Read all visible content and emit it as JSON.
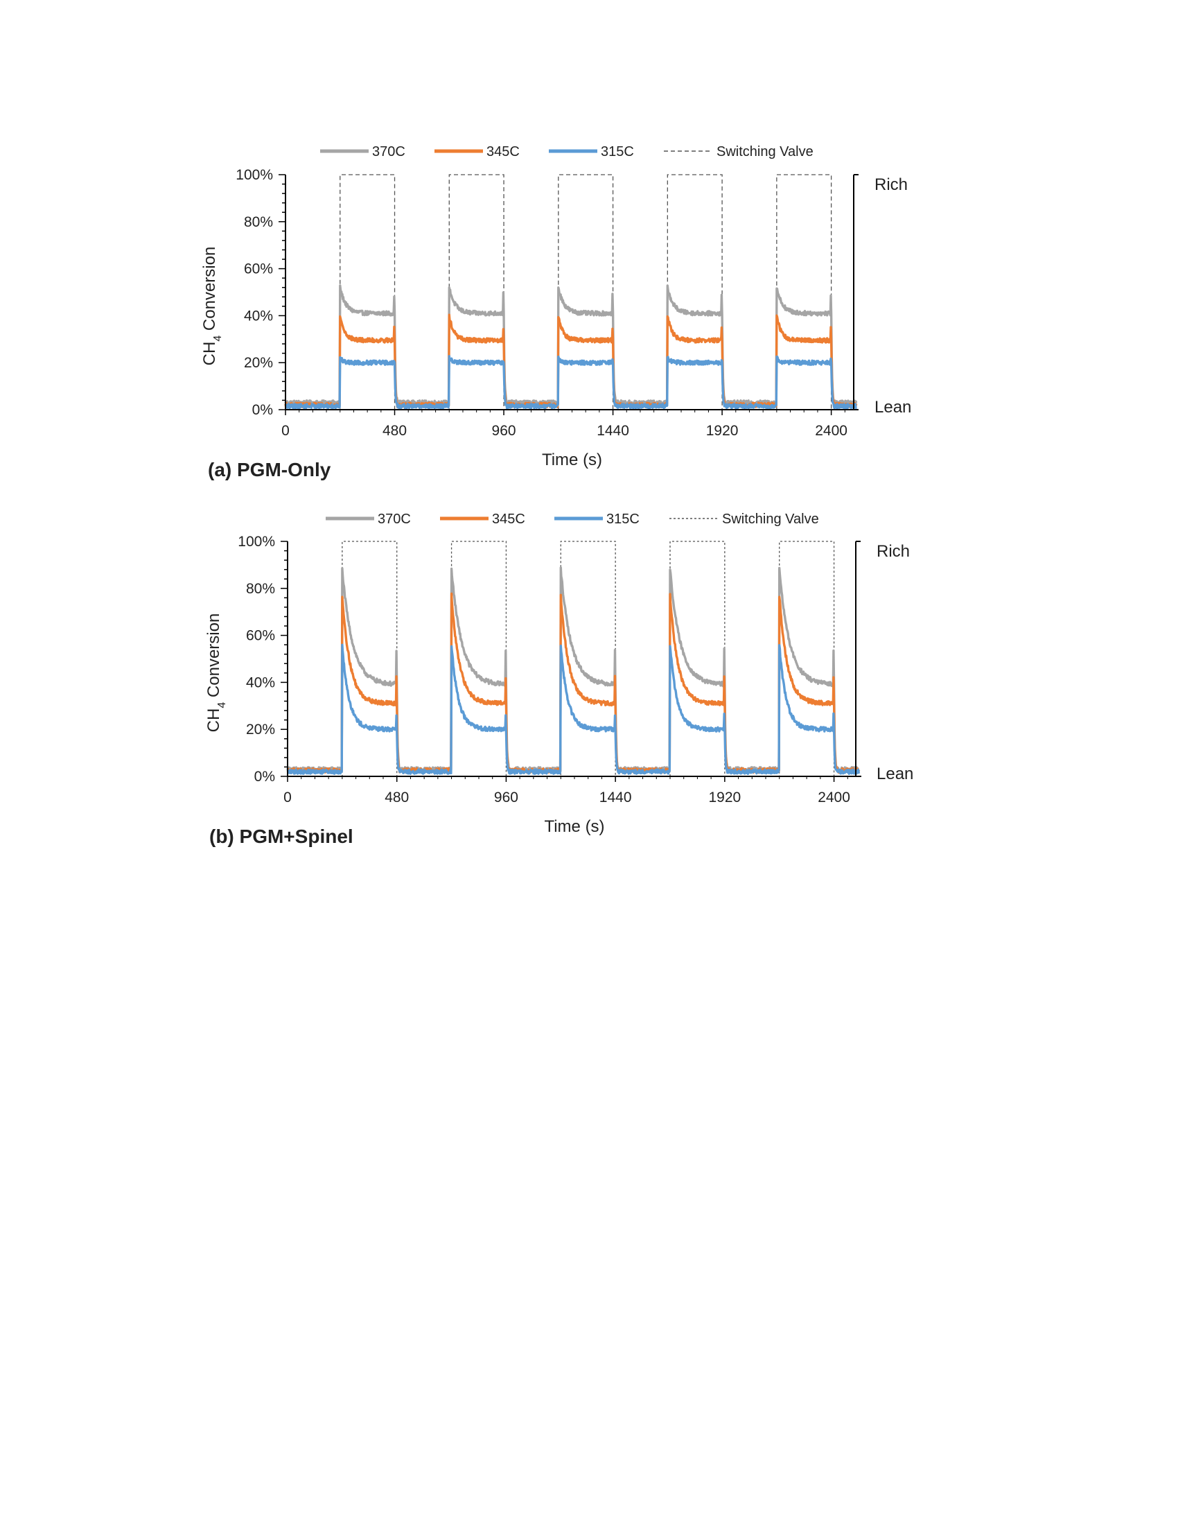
{
  "colors": {
    "370C": "#a5a5a5",
    "345C": "#ed7d31",
    "315C": "#5b9bd5",
    "switching_valve": "#555555",
    "axis": "#000000"
  },
  "chart_data": [
    {
      "type": "line",
      "caption": "(a) PGM-Only",
      "xlabel": "Time (s)",
      "ylabel_main": "CH",
      "ylabel_sub": "4",
      "ylabel_rest": " Conversion",
      "xlim": [
        0,
        2520
      ],
      "ylim": [
        0,
        1
      ],
      "x_ticks": [
        0,
        480,
        960,
        1440,
        1920,
        2400
      ],
      "x_tick_labels": [
        "0",
        "480",
        "960",
        "1440",
        "1920",
        "2400"
      ],
      "y_ticks": [
        0,
        0.2,
        0.4,
        0.6,
        0.8,
        1.0
      ],
      "y_tick_labels": [
        "0%",
        "20%",
        "40%",
        "60%",
        "80%",
        "100%"
      ],
      "rich_label": "Rich",
      "lean_label": "Lean",
      "legend_position": "top",
      "rich_periods": [
        [
          240,
          480
        ],
        [
          720,
          960
        ],
        [
          1200,
          1440
        ],
        [
          1680,
          1920
        ],
        [
          2160,
          2400
        ]
      ],
      "cycle_period_s": 480,
      "rich_duration_s": 240,
      "series": [
        {
          "name": "370C",
          "color_key": "370C",
          "lean_level": 0.03,
          "peak": 0.52,
          "steady": 0.41,
          "tau_s": 25,
          "end_spike": 0.49
        },
        {
          "name": "345C",
          "color_key": "345C",
          "lean_level": 0.02,
          "peak": 0.4,
          "steady": 0.295,
          "tau_s": 20,
          "end_spike": 0.35
        },
        {
          "name": "315C",
          "color_key": "315C",
          "lean_level": 0.015,
          "peak": 0.22,
          "steady": 0.2,
          "tau_s": 15,
          "end_spike": 0.21
        }
      ],
      "switching_valve": {
        "name": "Switching Valve",
        "lean": 0,
        "rich": 1.0
      }
    },
    {
      "type": "line",
      "caption": "(b) PGM+Spinel",
      "xlabel": "Time (s)",
      "ylabel_main": "CH",
      "ylabel_sub": "4",
      "ylabel_rest": " Conversion",
      "xlim": [
        0,
        2520
      ],
      "ylim": [
        0,
        1
      ],
      "x_ticks": [
        0,
        480,
        960,
        1440,
        1920,
        2400
      ],
      "x_tick_labels": [
        "0",
        "480",
        "960",
        "1440",
        "1920",
        "2400"
      ],
      "y_ticks": [
        0,
        0.2,
        0.4,
        0.6,
        0.8,
        1.0
      ],
      "y_tick_labels": [
        "0%",
        "20%",
        "40%",
        "60%",
        "80%",
        "100%"
      ],
      "rich_label": "Rich",
      "lean_label": "Lean",
      "legend_position": "top",
      "rich_periods": [
        [
          240,
          480
        ],
        [
          720,
          960
        ],
        [
          1200,
          1440
        ],
        [
          1680,
          1920
        ],
        [
          2160,
          2400
        ]
      ],
      "cycle_period_s": 480,
      "rich_duration_s": 240,
      "series": [
        {
          "name": "370C",
          "color_key": "370C",
          "lean_level": 0.03,
          "peak": 0.88,
          "steady": 0.39,
          "tau_s": 45,
          "end_spike": 0.54
        },
        {
          "name": "345C",
          "color_key": "345C",
          "lean_level": 0.025,
          "peak": 0.77,
          "steady": 0.31,
          "tau_s": 35,
          "end_spike": 0.42
        },
        {
          "name": "315C",
          "color_key": "315C",
          "lean_level": 0.02,
          "peak": 0.56,
          "steady": 0.2,
          "tau_s": 30,
          "end_spike": 0.26
        }
      ],
      "switching_valve": {
        "name": "Switching Valve",
        "lean": 0,
        "rich": 1.0
      }
    }
  ]
}
